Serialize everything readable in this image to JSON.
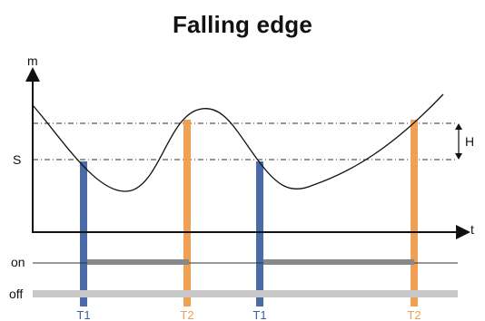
{
  "title": "Falling edge",
  "axes": {
    "y_label": "m",
    "x_label": "t",
    "setpoint_label": "S",
    "hysteresis_label": "H"
  },
  "states": {
    "on_label": "on",
    "off_label": "off"
  },
  "markers": [
    {
      "label": "T1",
      "type": "T1"
    },
    {
      "label": "T2",
      "type": "T2"
    },
    {
      "label": "T1",
      "type": "T1"
    },
    {
      "label": "T2",
      "type": "T2"
    }
  ],
  "colors": {
    "t1": "#4a6aa8",
    "t2": "#f0a055",
    "on_bar": "#888888",
    "off_bar": "#c8c8c8",
    "axis": "#111111",
    "curve": "#111111",
    "label_blue": "#3a5ea8"
  }
}
